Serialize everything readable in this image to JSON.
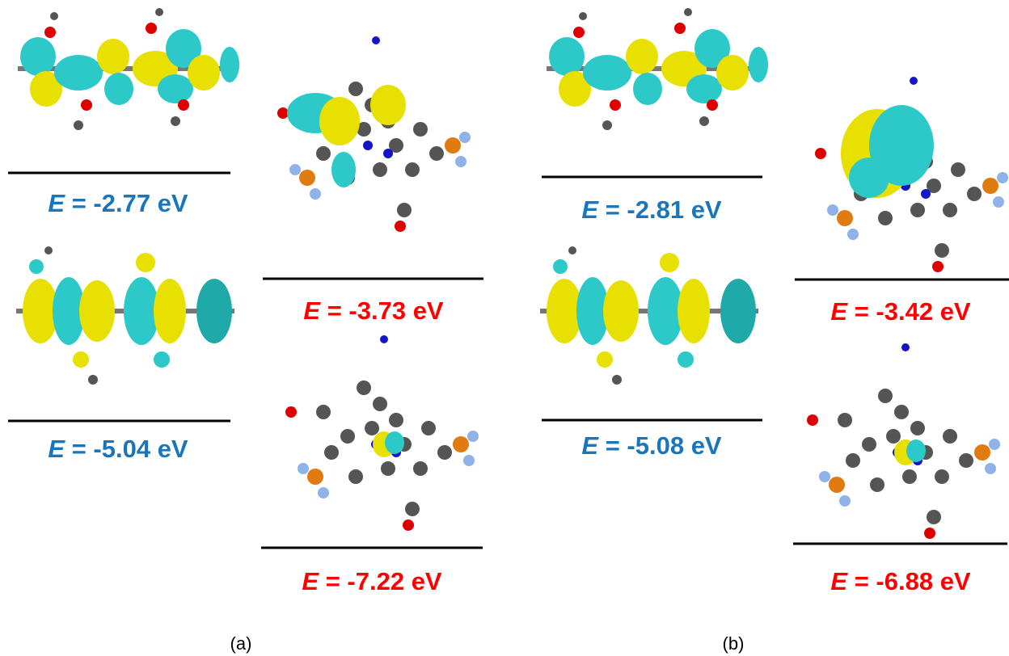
{
  "panels": [
    {
      "caption": "(a)",
      "levels": [
        {
          "symbol": "E",
          "text": "= -2.77 eV"
        },
        {
          "symbol": "E",
          "text": "= -5.04 eV"
        },
        {
          "symbol": "E",
          "text": "= -3.73 eV"
        },
        {
          "symbol": "E",
          "text": "= -7.22 eV"
        }
      ]
    },
    {
      "caption": "(b)",
      "levels": [
        {
          "symbol": "E",
          "text": "= -2.81 eV"
        },
        {
          "symbol": "E",
          "text": "= -5.08 eV"
        },
        {
          "symbol": "E",
          "text": "= -3.42 eV"
        },
        {
          "symbol": "E",
          "text": "= -6.88 eV"
        }
      ]
    }
  ]
}
